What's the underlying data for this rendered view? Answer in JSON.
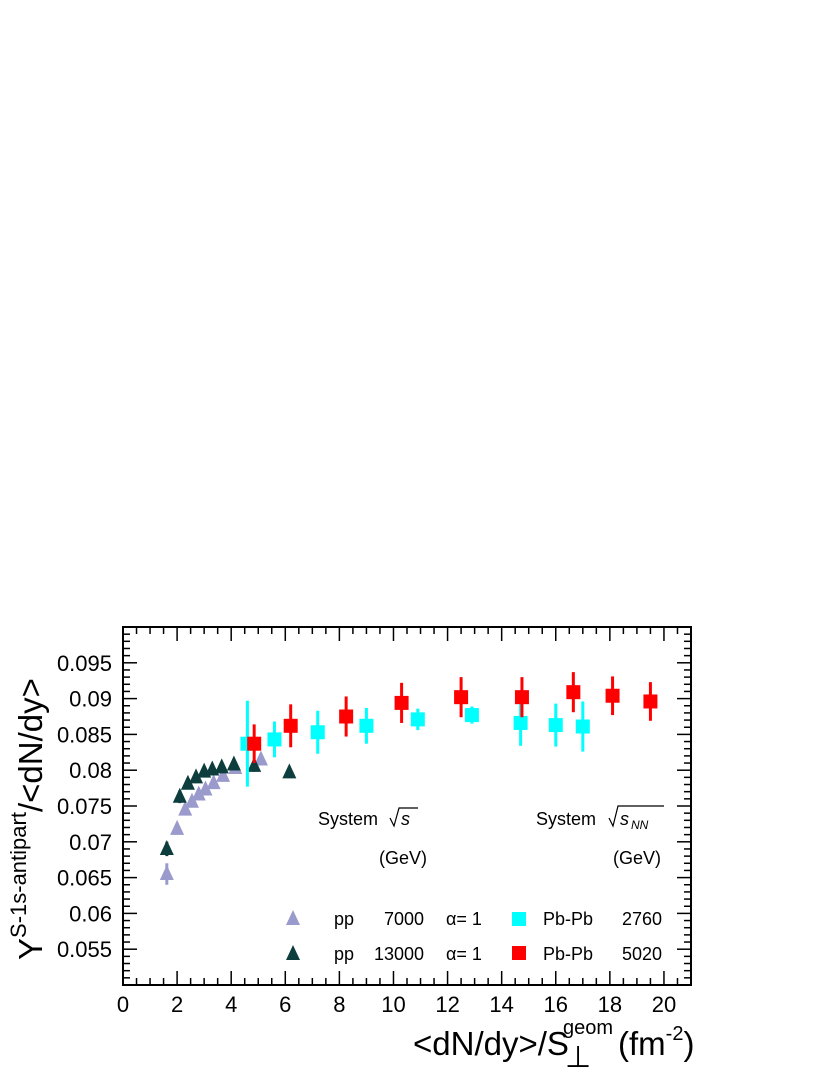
{
  "chart_data": {
    "type": "scatter",
    "xlim": [
      0,
      21
    ],
    "ylim": [
      0.05,
      0.1
    ],
    "x_ticks": [
      "0",
      "2",
      "4",
      "6",
      "8",
      "10",
      "12",
      "14",
      "16",
      "18",
      "20"
    ],
    "y_ticks": [
      "0.055",
      "0.06",
      "0.065",
      "0.07",
      "0.075",
      "0.08",
      "0.085",
      "0.09",
      "0.095"
    ],
    "xlabel": {
      "main": "<dN/dy>/S",
      "sub": "⊥",
      "sup": "geom",
      "unit": "(fm",
      "unit_sup": "-2",
      "unit_end": ")"
    },
    "ylabel": {
      "main": "Y",
      "sup": "S-1s-antipart",
      "rest": "/<dN/dy>"
    },
    "legend": {
      "left_header": {
        "system": "System",
        "energy_symbol": "√s",
        "unit": "(GeV)"
      },
      "right_header": {
        "system": "System",
        "energy_symbol": "√s",
        "energy_sub": "NN",
        "unit": "(GeV)"
      },
      "entries": [
        {
          "system": "pp",
          "energy": "7000",
          "alpha": "α=  1",
          "marker": "triangle",
          "color": "#9a9acc"
        },
        {
          "system": "pp",
          "energy": "13000",
          "alpha": "α=  1",
          "marker": "triangle",
          "color": "#0d3d3d"
        },
        {
          "system": "Pb-Pb",
          "energy": "2760",
          "marker": "square",
          "color": "#00ffff"
        },
        {
          "system": "Pb-Pb",
          "energy": "5020",
          "marker": "square",
          "color": "#ff0000"
        }
      ]
    },
    "series": [
      {
        "name": "pp 7000",
        "marker": "triangle",
        "color": "#9a9acc",
        "points": [
          [
            1.62,
            0.0655,
            0.0015
          ],
          [
            2.0,
            0.0718,
            0.0008
          ],
          [
            2.3,
            0.0745,
            0.0007
          ],
          [
            2.55,
            0.0756,
            0.0007
          ],
          [
            2.8,
            0.0766,
            0.0007
          ],
          [
            3.05,
            0.0773,
            0.0007
          ],
          [
            3.35,
            0.0782,
            0.0007
          ],
          [
            3.7,
            0.0792,
            0.0007
          ],
          [
            4.15,
            0.0803,
            0.0007
          ],
          [
            5.1,
            0.0815,
            0.0008
          ]
        ]
      },
      {
        "name": "pp 13000",
        "marker": "triangle",
        "color": "#0d3d3d",
        "points": [
          [
            1.62,
            0.069,
            0.001
          ],
          [
            2.1,
            0.0763,
            0.0009
          ],
          [
            2.4,
            0.0781,
            0.0008
          ],
          [
            2.7,
            0.079,
            0.0008
          ],
          [
            3.0,
            0.0798,
            0.0008
          ],
          [
            3.3,
            0.0801,
            0.0008
          ],
          [
            3.65,
            0.0804,
            0.0008
          ],
          [
            4.1,
            0.0808,
            0.0008
          ],
          [
            4.85,
            0.0806,
            0.0008
          ],
          [
            6.15,
            0.0797,
            0.0008
          ]
        ]
      },
      {
        "name": "Pb-Pb 2760",
        "marker": "square",
        "color": "#00ffff",
        "points": [
          [
            4.6,
            0.0837,
            0.006
          ],
          [
            5.6,
            0.0843,
            0.0025
          ],
          [
            7.2,
            0.0853,
            0.003
          ],
          [
            9.0,
            0.0862,
            0.0025
          ],
          [
            10.9,
            0.0871,
            0.0015
          ],
          [
            12.9,
            0.0877,
            0.0012
          ],
          [
            14.7,
            0.0866,
            0.0032
          ],
          [
            16.0,
            0.0863,
            0.003
          ],
          [
            17.0,
            0.0861,
            0.0035
          ]
        ]
      },
      {
        "name": "Pb-Pb 5020",
        "marker": "square",
        "color": "#ff0000",
        "points": [
          [
            4.85,
            0.0837,
            0.0027
          ],
          [
            6.2,
            0.0862,
            0.003
          ],
          [
            8.25,
            0.0875,
            0.0028
          ],
          [
            10.3,
            0.0894,
            0.0028
          ],
          [
            12.5,
            0.0902,
            0.0028
          ],
          [
            14.75,
            0.0902,
            0.0028
          ],
          [
            16.65,
            0.0909,
            0.0028
          ],
          [
            18.1,
            0.0904,
            0.0027
          ],
          [
            19.5,
            0.0896,
            0.0027
          ]
        ]
      }
    ]
  }
}
